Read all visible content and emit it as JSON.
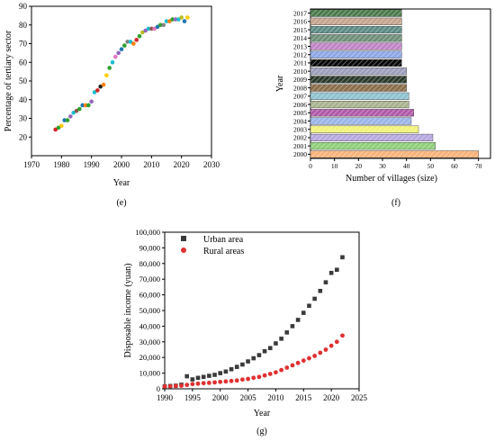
{
  "chart_data": [
    {
      "id": "e",
      "type": "scatter",
      "panel_label": "(e)",
      "xlabel": "Year",
      "ylabel": "Percentage of tertiary sector",
      "xlim": [
        1970,
        2030
      ],
      "ylim": [
        10,
        90
      ],
      "xticks": [
        1970,
        1980,
        1990,
        2000,
        2010,
        2020,
        2030
      ],
      "yticks": [
        20,
        30,
        40,
        50,
        60,
        70,
        80,
        90
      ],
      "x": [
        1978,
        1979,
        1980,
        1981,
        1982,
        1983,
        1984,
        1985,
        1986,
        1987,
        1988,
        1989,
        1990,
        1991,
        1992,
        1993,
        1994,
        1995,
        1996,
        1997,
        1998,
        1999,
        2000,
        2001,
        2002,
        2003,
        2004,
        2005,
        2006,
        2007,
        2008,
        2009,
        2010,
        2011,
        2012,
        2013,
        2014,
        2015,
        2016,
        2017,
        2018,
        2019,
        2020,
        2021,
        2022
      ],
      "y": [
        24,
        25,
        26,
        29,
        29,
        31,
        33,
        34,
        35,
        37,
        37,
        37,
        39,
        44,
        45,
        47,
        48,
        53,
        57,
        60,
        63,
        65,
        67,
        69,
        71,
        71,
        70,
        72,
        74,
        76,
        77,
        78,
        78,
        78,
        79,
        80,
        80,
        82,
        82,
        83,
        83,
        83,
        84,
        82,
        84
      ],
      "colors": [
        "#d62728",
        "#2ca02c",
        "#ffcc00",
        "#1f77b4",
        "#2ca02c",
        "#9467bd",
        "#17becf",
        "#8c564b",
        "#2ca02c",
        "#1f77b4",
        "#ff7f0e",
        "#2ca02c",
        "#9467bd",
        "#17becf",
        "#d62728",
        "#1f1f1f",
        "#ff7f0e",
        "#ffcc00",
        "#2ca02c",
        "#17becf",
        "#e377c2",
        "#9467bd",
        "#1f77b4",
        "#2ca02c",
        "#7f7f7f",
        "#17becf",
        "#ff7f0e",
        "#d62728",
        "#2ca02c",
        "#bcbd22",
        "#9467bd",
        "#17becf",
        "#8c564b",
        "#e377c2",
        "#1f77b4",
        "#2ca02c",
        "#7f7f7f",
        "#17becf",
        "#ff7f0e",
        "#2ca02c",
        "#9467bd",
        "#17becf",
        "#bcbd22",
        "#1f77b4",
        "#ffcc00"
      ]
    },
    {
      "id": "f",
      "type": "bar",
      "orientation": "horizontal",
      "panel_label": "(f)",
      "xlabel": "Number of villages (size)",
      "ylabel": "Year",
      "xlim": [
        0,
        75
      ],
      "xticks": [
        0,
        10,
        20,
        30,
        40,
        50,
        60,
        70
      ],
      "categories": [
        "2000",
        "2001",
        "2002",
        "2003",
        "2004",
        "2005",
        "2006",
        "2007",
        "2008",
        "2009",
        "2010",
        "2011",
        "2012",
        "2013",
        "2014",
        "2015",
        "2016",
        "2017"
      ],
      "values": [
        70,
        52,
        51,
        45,
        42,
        43,
        41,
        41,
        40,
        40,
        40,
        38,
        38,
        38,
        38,
        38,
        38,
        38
      ],
      "colors": [
        "#f7b27a",
        "#8fd07a",
        "#b7a9e0",
        "#f2f27a",
        "#9ab5e8",
        "#b05aa8",
        "#a9b38f",
        "#8fc3cf",
        "#8b6e4a",
        "#2b3a2b",
        "#9ea0bd",
        "#0a0a0a",
        "#8ea7e6",
        "#c084c6",
        "#6f8f7a",
        "#5d8b86",
        "#c6a48f",
        "#4c7a4c"
      ]
    },
    {
      "id": "g",
      "type": "scatter",
      "panel_label": "(g)",
      "xlabel": "Year",
      "ylabel": "Disposable income (yuan)",
      "xlim": [
        1990,
        2025
      ],
      "ylim": [
        0,
        100000
      ],
      "xticks": [
        1990,
        1995,
        2000,
        2005,
        2010,
        2015,
        2020,
        2025
      ],
      "yticks": [
        0,
        10000,
        20000,
        30000,
        40000,
        50000,
        60000,
        70000,
        80000,
        90000,
        100000
      ],
      "ytick_labels": [
        "0",
        "10,000",
        "20,000",
        "30,000",
        "40,000",
        "50,000",
        "60,000",
        "70,000",
        "80,000",
        "90,000",
        "100,000"
      ],
      "x": [
        1990,
        1991,
        1992,
        1993,
        1994,
        1995,
        1996,
        1997,
        1998,
        1999,
        2000,
        2001,
        2002,
        2003,
        2004,
        2005,
        2006,
        2007,
        2008,
        2009,
        2010,
        2011,
        2012,
        2013,
        2014,
        2015,
        2016,
        2017,
        2018,
        2019,
        2020,
        2021,
        2022
      ],
      "series": [
        {
          "name": "Urban area",
          "color": "#3a3a3a",
          "marker": "square",
          "values": [
            1500,
            1800,
            2000,
            2600,
            8000,
            6000,
            7000,
            7600,
            8300,
            8900,
            10000,
            11000,
            12500,
            14000,
            15500,
            17500,
            19500,
            21500,
            24000,
            26000,
            29000,
            32000,
            36000,
            40000,
            44000,
            48500,
            53000,
            57500,
            62500,
            68000,
            74000,
            76000,
            84000
          ]
        },
        {
          "name": "Rural areas",
          "color": "#e03030",
          "marker": "circle",
          "values": [
            1500,
            1600,
            1800,
            2000,
            2500,
            3000,
            3300,
            3600,
            3800,
            4100,
            4400,
            4700,
            5000,
            5300,
            5900,
            6300,
            7000,
            7600,
            8500,
            9500,
            10500,
            12000,
            13500,
            15000,
            16500,
            18000,
            19500,
            21000,
            23000,
            25000,
            27500,
            30000,
            34000
          ]
        }
      ],
      "legend_position": "top-left"
    }
  ]
}
